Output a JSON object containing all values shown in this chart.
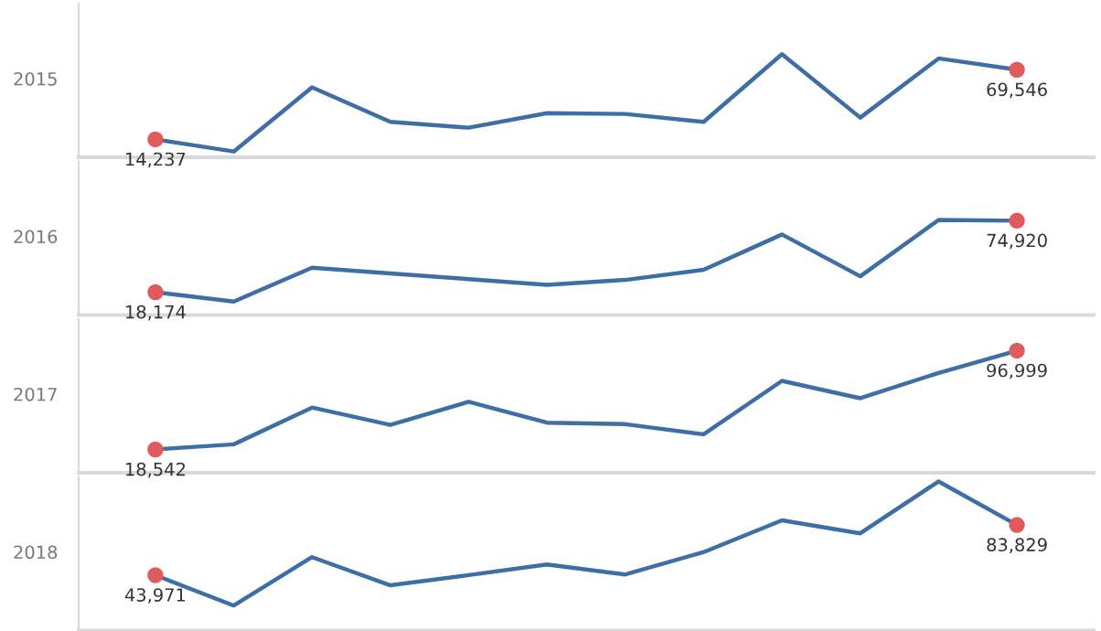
{
  "chart_data": [
    {
      "type": "line",
      "ylabel": "2015",
      "categories": [
        null,
        null,
        null,
        null,
        null,
        null,
        null,
        null,
        null,
        null,
        null,
        null
      ],
      "ylim": [
        0,
        122000
      ],
      "series": [
        {
          "color": "#3e6ea6",
          "colors": [
            "#e05c5c",
            null,
            null,
            null,
            null,
            null,
            null,
            null,
            null,
            null,
            null,
            "#e05c5c"
          ],
          "values": [
            14237,
            4600,
            55600,
            28100,
            23500,
            35000,
            34400,
            28100,
            81900,
            31500,
            78500,
            69546
          ],
          "value_labels": [
            "14,237",
            null,
            null,
            null,
            null,
            null,
            null,
            null,
            null,
            null,
            null,
            "69,546"
          ]
        }
      ]
    },
    {
      "type": "line",
      "ylabel": "2016",
      "categories": [
        null,
        null,
        null,
        null,
        null,
        null,
        null,
        null,
        null,
        null,
        null,
        null
      ],
      "ylim": [
        0,
        122000
      ],
      "series": [
        {
          "color": "#3e6ea6",
          "colors": [
            "#e05c5c",
            null,
            null,
            null,
            null,
            null,
            null,
            null,
            null,
            null,
            null,
            "#e05c5c"
          ],
          "values": [
            18174,
            10700,
            37600,
            33100,
            28500,
            23900,
            27900,
            35900,
            64000,
            30800,
            75500,
            74920
          ],
          "value_labels": [
            "18,174",
            null,
            null,
            null,
            null,
            null,
            null,
            null,
            null,
            null,
            null,
            "74,920"
          ]
        }
      ]
    },
    {
      "type": "line",
      "ylabel": "2017",
      "categories": [
        null,
        null,
        null,
        null,
        null,
        null,
        null,
        null,
        null,
        null,
        null,
        null
      ],
      "ylim": [
        0,
        122000
      ],
      "series": [
        {
          "color": "#3e6ea6",
          "colors": [
            "#e05c5c",
            null,
            null,
            null,
            null,
            null,
            null,
            null,
            null,
            null,
            null,
            "#e05c5c"
          ],
          "values": [
            18542,
            22600,
            51800,
            38000,
            56400,
            39800,
            38600,
            30600,
            73000,
            59200,
            79300,
            96999
          ],
          "value_labels": [
            "18,542",
            null,
            null,
            null,
            null,
            null,
            null,
            null,
            null,
            null,
            null,
            "96,999"
          ]
        }
      ]
    },
    {
      "type": "line",
      "ylabel": "2018",
      "categories": [
        null,
        null,
        null,
        null,
        null,
        null,
        null,
        null,
        null,
        null,
        null,
        null
      ],
      "ylim": [
        0,
        122000
      ],
      "series": [
        {
          "color": "#3e6ea6",
          "colors": [
            "#e05c5c",
            null,
            null,
            null,
            null,
            null,
            null,
            null,
            null,
            null,
            null,
            "#e05c5c"
          ],
          "values": [
            43971,
            19900,
            58300,
            35900,
            44000,
            52500,
            44500,
            62300,
            87500,
            77200,
            118400,
            83829
          ],
          "value_labels": [
            "43,971",
            null,
            null,
            null,
            null,
            null,
            null,
            null,
            null,
            null,
            null,
            "83,829"
          ]
        }
      ]
    }
  ]
}
